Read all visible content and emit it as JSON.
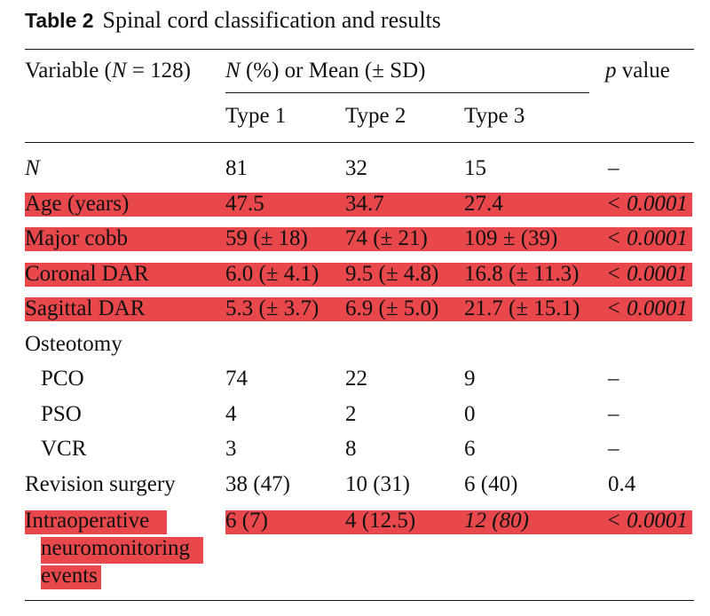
{
  "caption": {
    "label": "Table 2",
    "title": "Spinal cord classification and results"
  },
  "header": {
    "variable_prefix": "Variable (",
    "variable_n": "N",
    "variable_suffix": " = 128)",
    "group_n": "N",
    "group_rest": " (%) or Mean (± SD)",
    "p_letter": "p",
    "p_rest": " value",
    "type1": "Type 1",
    "type2": "Type 2",
    "type3": "Type 3"
  },
  "rows": [
    {
      "label": "N",
      "t1": "81",
      "t2": "32",
      "t3": "15",
      "p": "–"
    },
    {
      "label": "Age (years)",
      "t1": "47.5",
      "t2": "34.7",
      "t3": "27.4",
      "p": "< 0.0001"
    },
    {
      "label": "Major cobb",
      "t1": "59 (± 18)",
      "t2": "74 (± 21)",
      "t3": "109 ± (39)",
      "p": "< 0.0001"
    },
    {
      "label": "Coronal DAR",
      "t1": "6.0 (± 4.1)",
      "t2": "9.5 (± 4.8)",
      "t3": "16.8 (± 11.3)",
      "p": "< 0.0001"
    },
    {
      "label": "Sagittal DAR",
      "t1": "5.3 (± 3.7)",
      "t2": "6.9 (± 5.0)",
      "t3": "21.7 (± 15.1)",
      "p": "< 0.0001"
    },
    {
      "label": "Osteotomy"
    },
    {
      "label": "PCO",
      "t1": "74",
      "t2": "22",
      "t3": "9",
      "p": "–"
    },
    {
      "label": "PSO",
      "t1": "4",
      "t2": "2",
      "t3": "0",
      "p": "–"
    },
    {
      "label": "VCR",
      "t1": "3",
      "t2": "8",
      "t3": "6",
      "p": "–"
    },
    {
      "label": "Revision surgery",
      "t1": "38 (47)",
      "t2": "10 (31)",
      "t3": "6 (40)",
      "p": "0.4"
    },
    {
      "label_lines": [
        "Intraoperative",
        "neuromonitoring",
        "events"
      ],
      "t1": "6 (7)",
      "t2": "4 (12.5)",
      "t3": "12 (80)",
      "p": "< 0.0001"
    }
  ],
  "colors": {
    "highlight": "#e8474c",
    "text": "#111111",
    "rule": "#111111"
  }
}
